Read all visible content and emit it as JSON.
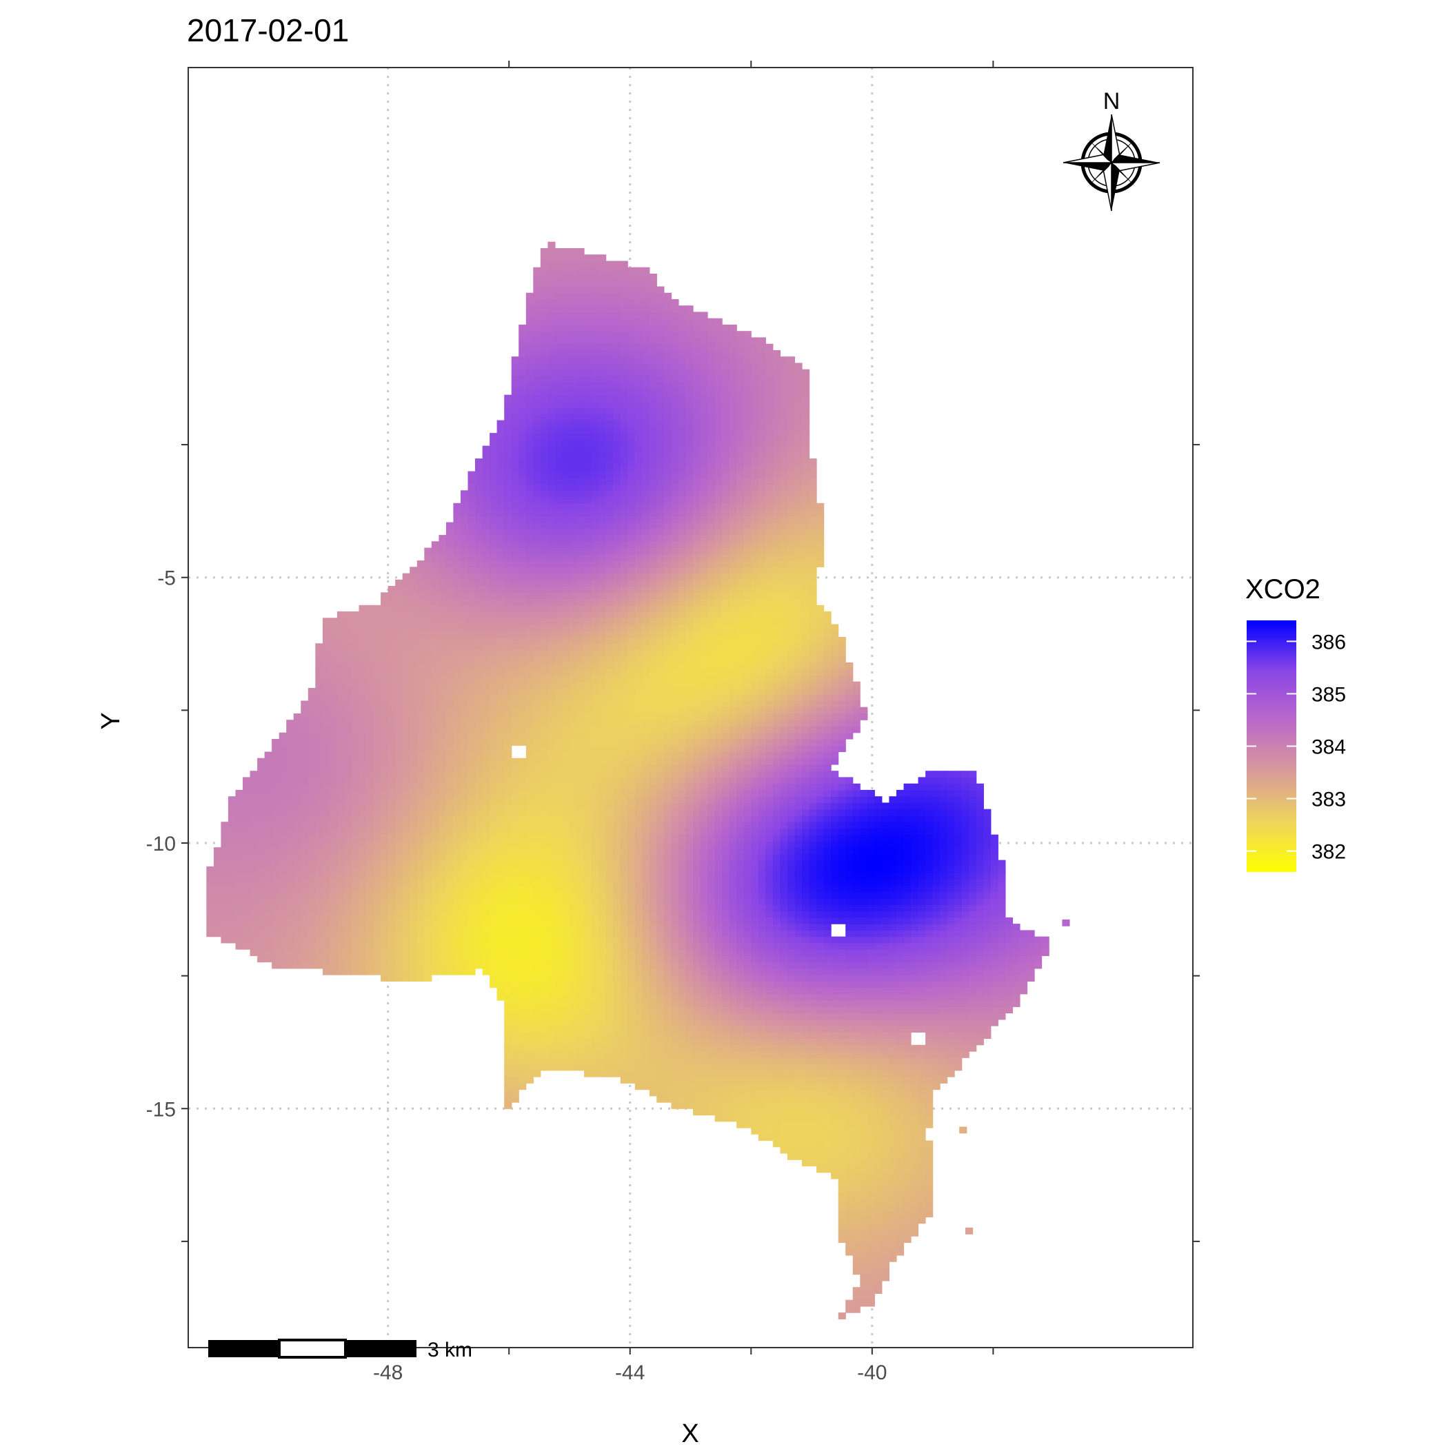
{
  "chart_data": {
    "type": "heatmap",
    "title": "2017-02-01",
    "xlabel": "X",
    "ylabel": "Y",
    "xlim": [
      -51.3,
      -34.7
    ],
    "ylim": [
      -19.5,
      4.6
    ],
    "x_ticks": [
      {
        "value": -48,
        "label": "-48"
      },
      {
        "value": -44,
        "label": "-44"
      },
      {
        "value": -40,
        "label": "-40"
      }
    ],
    "x_minor_ticks": [
      -46,
      -42,
      -38
    ],
    "y_ticks": [
      {
        "value": -5,
        "label": "-5"
      },
      {
        "value": -10,
        "label": "-10"
      },
      {
        "value": -15,
        "label": "-15"
      }
    ],
    "y_minor_ticks": [
      -2.5,
      -7.5,
      -12.5,
      -17.5
    ],
    "grid": true,
    "legend": {
      "title": "XCO2",
      "position": "right",
      "min": 381.6,
      "max": 386.4,
      "low_color": "#FFFF00",
      "high_color": "#0000FF",
      "ticks": [
        {
          "value": 386,
          "label": "386"
        },
        {
          "value": 385,
          "label": "385"
        },
        {
          "value": 384,
          "label": "384"
        },
        {
          "value": 383,
          "label": "383"
        },
        {
          "value": 382,
          "label": "382"
        }
      ]
    },
    "field": {
      "base_value": 383.7,
      "peaks": [
        {
          "x": -44.7,
          "y": -3.4,
          "value": 386.4
        },
        {
          "x": -41.4,
          "y": -11.2,
          "value": 386.4
        },
        {
          "x": -38.7,
          "y": -9.2,
          "value": 385.4
        },
        {
          "x": -49.2,
          "y": -8.2,
          "value": 384.4
        },
        {
          "x": -45.3,
          "y": -11.9,
          "value": 381.6
        },
        {
          "x": -41.3,
          "y": -14.4,
          "value": 381.8
        },
        {
          "x": -42.0,
          "y": -5.7,
          "value": 382.0
        },
        {
          "x": -47.1,
          "y": -5.6,
          "value": 382.9
        },
        {
          "x": -43.3,
          "y": -7.6,
          "value": 382.9
        },
        {
          "x": -43.6,
          "y": -14.2,
          "value": 384.2
        }
      ],
      "region_outline": [
        [
          -45.4,
          1.3
        ],
        [
          -44.6,
          1.1
        ],
        [
          -43.7,
          0.8
        ],
        [
          -43.3,
          0.2
        ],
        [
          -42.3,
          -0.3
        ],
        [
          -41.7,
          -0.6
        ],
        [
          -41.1,
          -1.1
        ],
        [
          -41.0,
          -2.6
        ],
        [
          -40.8,
          -4.0
        ],
        [
          -40.9,
          -5.4
        ],
        [
          -40.5,
          -6.1
        ],
        [
          -40.1,
          -7.6
        ],
        [
          -40.7,
          -8.6
        ],
        [
          -39.8,
          -9.2
        ],
        [
          -39.0,
          -8.6
        ],
        [
          -38.3,
          -8.6
        ],
        [
          -37.8,
          -10.5
        ],
        [
          -37.8,
          -11.4
        ],
        [
          -37.0,
          -11.9
        ],
        [
          -37.6,
          -13.0
        ],
        [
          -38.3,
          -13.9
        ],
        [
          -39.0,
          -14.7
        ],
        [
          -39.0,
          -16.9
        ],
        [
          -39.6,
          -17.8
        ],
        [
          -40.0,
          -18.7
        ],
        [
          -40.6,
          -19.0
        ],
        [
          -40.2,
          -18.3
        ],
        [
          -40.6,
          -17.2
        ],
        [
          -40.6,
          -16.3
        ],
        [
          -41.2,
          -16.0
        ],
        [
          -42.2,
          -15.3
        ],
        [
          -43.4,
          -14.9
        ],
        [
          -44.0,
          -14.5
        ],
        [
          -45.4,
          -14.2
        ],
        [
          -46.1,
          -15.1
        ],
        [
          -46.1,
          -13.0
        ],
        [
          -46.4,
          -12.4
        ],
        [
          -47.7,
          -12.6
        ],
        [
          -48.5,
          -12.5
        ],
        [
          -49.9,
          -12.3
        ],
        [
          -51.0,
          -11.7
        ],
        [
          -51.0,
          -10.7
        ],
        [
          -50.6,
          -9.2
        ],
        [
          -49.8,
          -8.0
        ],
        [
          -49.2,
          -7.0
        ],
        [
          -49.1,
          -5.8
        ],
        [
          -48.2,
          -5.5
        ],
        [
          -47.1,
          -4.2
        ],
        [
          -46.6,
          -3.0
        ],
        [
          -46.1,
          -2.0
        ],
        [
          -45.8,
          -0.3
        ],
        [
          -45.6,
          0.6
        ]
      ],
      "holes": [
        {
          "x": -45.8,
          "y": -8.3,
          "size": 0.12
        },
        {
          "x": -39.2,
          "y": -13.7,
          "size": 0.12
        },
        {
          "x": -39.0,
          "y": -15.5,
          "size": 0.12
        },
        {
          "x": -40.6,
          "y": -11.7,
          "size": 0.12
        }
      ],
      "islands": [
        {
          "x": -38.4,
          "y": -17.3,
          "size": 0.12
        },
        {
          "x": -38.5,
          "y": -15.4,
          "size": 0.12
        },
        {
          "x": -36.8,
          "y": -11.5,
          "size": 0.12
        }
      ]
    },
    "scale_bar": {
      "label": "3 km"
    },
    "north_arrow": {
      "label": "N"
    }
  }
}
